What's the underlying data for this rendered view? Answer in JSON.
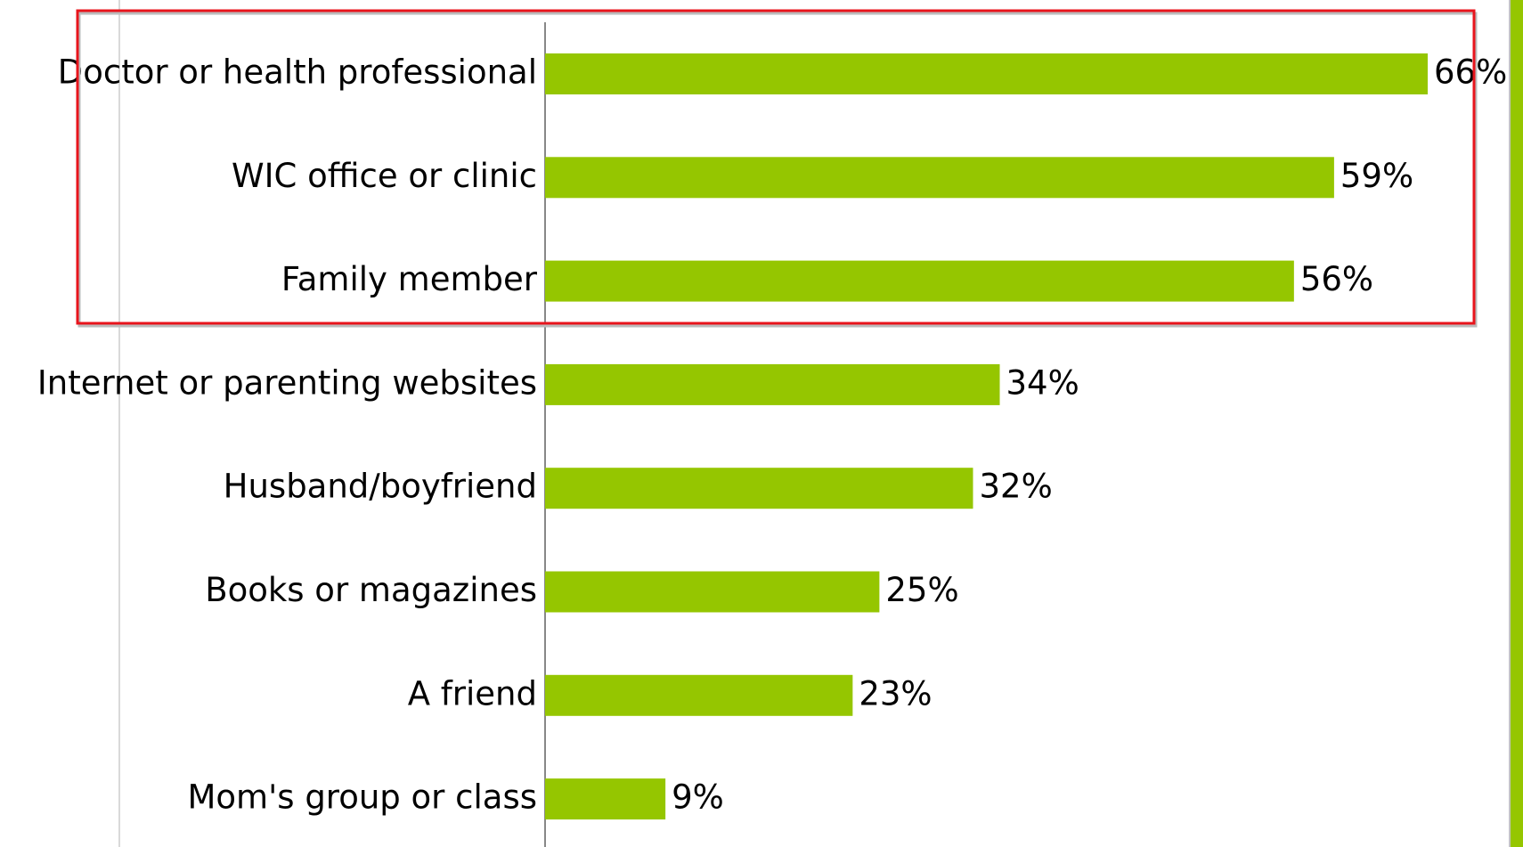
{
  "chart_data": {
    "type": "bar",
    "orientation": "horizontal",
    "categories": [
      "Doctor or health professional",
      "WIC office or clinic",
      "Family member",
      "Internet or parenting websites",
      "Husband/boyfriend",
      "Books or magazines",
      "A friend",
      "Mom's group or class"
    ],
    "values": [
      66,
      59,
      56,
      34,
      32,
      25,
      23,
      9
    ],
    "value_labels": [
      "66%",
      "59%",
      "56%",
      "34%",
      "32%",
      "25%",
      "23%",
      "9%"
    ],
    "color": "#95c600"
  }
}
